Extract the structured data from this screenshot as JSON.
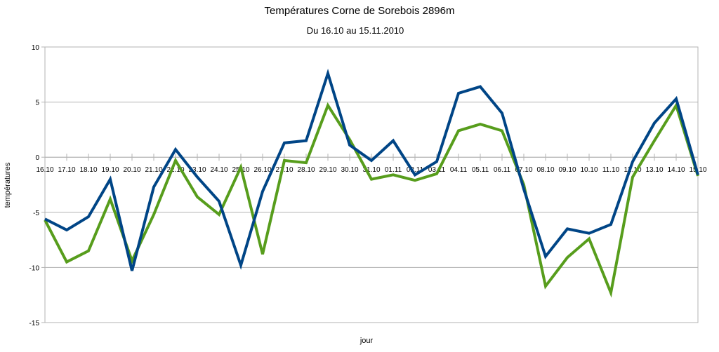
{
  "chart_data": {
    "type": "line",
    "title": "Températures Corne de Sorebois 2896m",
    "subtitle": "Du 16.10 au 15.11.2010",
    "xlabel": "jour",
    "ylabel": "températures",
    "ylim": [
      -15,
      10
    ],
    "yticks": [
      10,
      5,
      0,
      -5,
      -10,
      -15
    ],
    "grid": true,
    "legend": "none",
    "categories": [
      "16.10",
      "17.10",
      "18.10",
      "19.10",
      "20.10",
      "21.10",
      "22.10",
      "23.10",
      "24.10",
      "25.10",
      "26.10",
      "27.10",
      "28.10",
      "29.10",
      "30.10",
      "31.10",
      "01.11",
      "02.11",
      "03.11",
      "04.11",
      "05.11",
      "06.11",
      "07.10",
      "08.10",
      "09.10",
      "10.10",
      "11.10",
      "12.10",
      "13.10",
      "14.10",
      "15.10"
    ],
    "series": [
      {
        "color": "#004586",
        "values": [
          -5.6,
          -6.6,
          -5.4,
          -2.0,
          -10.3,
          -2.7,
          0.7,
          -1.8,
          -4.0,
          -9.8,
          -3.1,
          1.3,
          1.5,
          7.6,
          1.1,
          -0.3,
          1.5,
          -1.6,
          -0.4,
          5.8,
          6.4,
          4.0,
          -2.9,
          -9.0,
          -6.5,
          -6.9,
          -6.1,
          -0.4,
          3.1,
          5.3,
          -1.6
        ]
      },
      {
        "color": "#579d1c",
        "values": [
          -5.7,
          -9.5,
          -8.5,
          -3.8,
          -9.4,
          -5.2,
          -0.3,
          -3.6,
          -5.2,
          -0.9,
          -8.8,
          -0.3,
          -0.5,
          4.7,
          1.6,
          -2.0,
          -1.6,
          -2.1,
          -1.5,
          2.4,
          3.0,
          2.4,
          -2.5,
          -11.7,
          -9.1,
          -7.4,
          -12.3,
          -1.8,
          1.5,
          4.7,
          -1.7
        ]
      }
    ]
  }
}
